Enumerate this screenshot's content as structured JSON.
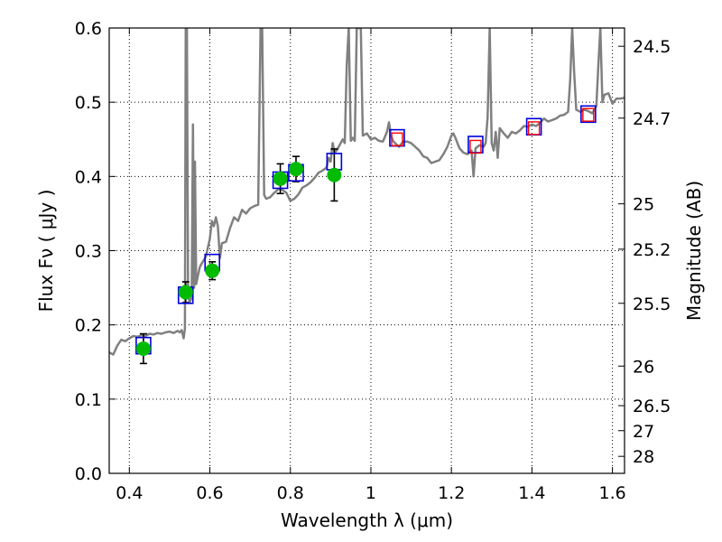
{
  "chart_data": {
    "type": "scatter",
    "xlabel": "Wavelength  λ (μm)",
    "ylabel_left": "Flux  Fν  ( μJy )",
    "ylabel_right": "Magnitude (AB)",
    "xlim": [
      0.35,
      1.63
    ],
    "ylim": [
      0.0,
      0.6
    ],
    "x_ticks": [
      0.4,
      0.6,
      0.8,
      1.0,
      1.2,
      1.4,
      1.6
    ],
    "x_tick_labels": [
      "0.4",
      "0.6",
      "0.8",
      "1",
      "1.2",
      "1.4",
      "1.6"
    ],
    "y_ticks": [
      0.0,
      0.1,
      0.2,
      0.3,
      0.4,
      0.5,
      0.6
    ],
    "y_tick_labels": [
      "0.0",
      "0.1",
      "0.2",
      "0.3",
      "0.4",
      "0.5",
      "0.6"
    ],
    "right_ticks": [
      {
        "label": "24.5",
        "flux": 0.5754
      },
      {
        "label": "24.7",
        "flux": 0.4786
      },
      {
        "label": "25",
        "flux": 0.3631
      },
      {
        "label": "25.2",
        "flux": 0.302
      },
      {
        "label": "25.5",
        "flux": 0.2291
      },
      {
        "label": "26",
        "flux": 0.1445
      },
      {
        "label": "26.5",
        "flux": 0.0912
      },
      {
        "label": "27",
        "flux": 0.0575
      },
      {
        "label": "28",
        "flux": 0.0229
      }
    ],
    "grid": true,
    "colors": {
      "model_line": "#808080",
      "observed": "#00bb00",
      "model_box": "#0000dd",
      "inner_box": "#ff0000",
      "errorbar": "#000000"
    },
    "series": [
      {
        "kind": "observed",
        "points": [
          {
            "x": 0.435,
            "y": 0.168,
            "err": 0.02
          },
          {
            "x": 0.54,
            "y": 0.244,
            "err": 0.014
          },
          {
            "x": 0.606,
            "y": 0.273,
            "err": 0.012
          },
          {
            "x": 0.775,
            "y": 0.397,
            "err": 0.02
          },
          {
            "x": 0.814,
            "y": 0.41,
            "err": 0.017
          },
          {
            "x": 0.909,
            "y": 0.402,
            "err": 0.035
          }
        ]
      },
      {
        "kind": "model_photometry",
        "points": [
          {
            "x": 0.435,
            "y": 0.172
          },
          {
            "x": 0.54,
            "y": 0.24
          },
          {
            "x": 0.606,
            "y": 0.284
          },
          {
            "x": 0.775,
            "y": 0.395
          },
          {
            "x": 0.814,
            "y": 0.405
          },
          {
            "x": 0.909,
            "y": 0.42
          },
          {
            "x": 1.065,
            "y": 0.452
          },
          {
            "x": 1.26,
            "y": 0.443
          },
          {
            "x": 1.405,
            "y": 0.467
          },
          {
            "x": 1.54,
            "y": 0.484
          }
        ]
      },
      {
        "kind": "inner_photometry",
        "points": [
          {
            "x": 1.065,
            "y": 0.45
          },
          {
            "x": 1.26,
            "y": 0.44
          },
          {
            "x": 1.405,
            "y": 0.465
          },
          {
            "x": 1.54,
            "y": 0.483
          }
        ]
      },
      {
        "kind": "model_spectrum",
        "points": [
          [
            0.35,
            0.163
          ],
          [
            0.36,
            0.16
          ],
          [
            0.37,
            0.172
          ],
          [
            0.38,
            0.18
          ],
          [
            0.39,
            0.178
          ],
          [
            0.4,
            0.182
          ],
          [
            0.41,
            0.185
          ],
          [
            0.42,
            0.184
          ],
          [
            0.43,
            0.186
          ],
          [
            0.44,
            0.185
          ],
          [
            0.45,
            0.188
          ],
          [
            0.46,
            0.187
          ],
          [
            0.47,
            0.189
          ],
          [
            0.48,
            0.188
          ],
          [
            0.49,
            0.19
          ],
          [
            0.5,
            0.191
          ],
          [
            0.51,
            0.189
          ],
          [
            0.52,
            0.192
          ],
          [
            0.525,
            0.19
          ],
          [
            0.53,
            0.193
          ],
          [
            0.535,
            0.182
          ],
          [
            0.538,
            0.195
          ],
          [
            0.54,
            0.6
          ],
          [
            0.543,
            0.6
          ],
          [
            0.546,
            0.24
          ],
          [
            0.55,
            0.23
          ],
          [
            0.555,
            0.237
          ],
          [
            0.558,
            0.47
          ],
          [
            0.561,
            0.25
          ],
          [
            0.563,
            0.42
          ],
          [
            0.566,
            0.255
          ],
          [
            0.57,
            0.265
          ],
          [
            0.575,
            0.278
          ],
          [
            0.58,
            0.283
          ],
          [
            0.59,
            0.292
          ],
          [
            0.6,
            0.316
          ],
          [
            0.605,
            0.34
          ],
          [
            0.61,
            0.333
          ],
          [
            0.615,
            0.345
          ],
          [
            0.62,
            0.333
          ],
          [
            0.625,
            0.29
          ],
          [
            0.63,
            0.31
          ],
          [
            0.64,
            0.312
          ],
          [
            0.65,
            0.33
          ],
          [
            0.66,
            0.345
          ],
          [
            0.67,
            0.34
          ],
          [
            0.68,
            0.355
          ],
          [
            0.69,
            0.35
          ],
          [
            0.7,
            0.357
          ],
          [
            0.71,
            0.36
          ],
          [
            0.72,
            0.362
          ],
          [
            0.726,
            0.6
          ],
          [
            0.73,
            0.6
          ],
          [
            0.735,
            0.375
          ],
          [
            0.74,
            0.37
          ],
          [
            0.75,
            0.372
          ],
          [
            0.76,
            0.378
          ],
          [
            0.77,
            0.383
          ],
          [
            0.78,
            0.382
          ],
          [
            0.79,
            0.378
          ],
          [
            0.8,
            0.367
          ],
          [
            0.81,
            0.37
          ],
          [
            0.82,
            0.376
          ],
          [
            0.83,
            0.385
          ],
          [
            0.84,
            0.388
          ],
          [
            0.85,
            0.392
          ],
          [
            0.86,
            0.398
          ],
          [
            0.87,
            0.405
          ],
          [
            0.88,
            0.408
          ],
          [
            0.89,
            0.412
          ],
          [
            0.895,
            0.425
          ],
          [
            0.9,
            0.42
          ],
          [
            0.905,
            0.445
          ],
          [
            0.91,
            0.432
          ],
          [
            0.915,
            0.435
          ],
          [
            0.92,
            0.44
          ],
          [
            0.925,
            0.445
          ],
          [
            0.93,
            0.45
          ],
          [
            0.935,
            0.445
          ],
          [
            0.94,
            0.55
          ],
          [
            0.945,
            0.6
          ],
          [
            0.95,
            0.448
          ],
          [
            0.955,
            0.452
          ],
          [
            0.96,
            0.448
          ],
          [
            0.965,
            0.6
          ],
          [
            0.97,
            0.6
          ],
          [
            0.975,
            0.6
          ],
          [
            0.98,
            0.455
          ],
          [
            0.99,
            0.458
          ],
          [
            1.0,
            0.45
          ],
          [
            1.01,
            0.452
          ],
          [
            1.02,
            0.448
          ],
          [
            1.03,
            0.447
          ],
          [
            1.04,
            0.46
          ],
          [
            1.045,
            0.473
          ],
          [
            1.05,
            0.455
          ],
          [
            1.055,
            0.448
          ],
          [
            1.06,
            0.445
          ],
          [
            1.07,
            0.44
          ],
          [
            1.08,
            0.447
          ],
          [
            1.09,
            0.447
          ],
          [
            1.1,
            0.445
          ],
          [
            1.11,
            0.44
          ],
          [
            1.12,
            0.435
          ],
          [
            1.13,
            0.427
          ],
          [
            1.14,
            0.425
          ],
          [
            1.15,
            0.418
          ],
          [
            1.16,
            0.42
          ],
          [
            1.17,
            0.422
          ],
          [
            1.18,
            0.43
          ],
          [
            1.19,
            0.44
          ],
          [
            1.2,
            0.455
          ],
          [
            1.205,
            0.458
          ],
          [
            1.21,
            0.452
          ],
          [
            1.22,
            0.438
          ],
          [
            1.23,
            0.432
          ],
          [
            1.24,
            0.43
          ],
          [
            1.25,
            0.435
          ],
          [
            1.255,
            0.4
          ],
          [
            1.26,
            0.438
          ],
          [
            1.27,
            0.442
          ],
          [
            1.28,
            0.44
          ],
          [
            1.285,
            0.445
          ],
          [
            1.29,
            0.48
          ],
          [
            1.295,
            0.6
          ],
          [
            1.3,
            0.445
          ],
          [
            1.305,
            0.435
          ],
          [
            1.31,
            0.46
          ],
          [
            1.315,
            0.425
          ],
          [
            1.32,
            0.465
          ],
          [
            1.33,
            0.458
          ],
          [
            1.34,
            0.452
          ],
          [
            1.35,
            0.46
          ],
          [
            1.36,
            0.458
          ],
          [
            1.37,
            0.462
          ],
          [
            1.38,
            0.468
          ],
          [
            1.39,
            0.467
          ],
          [
            1.4,
            0.47
          ],
          [
            1.41,
            0.468
          ],
          [
            1.42,
            0.472
          ],
          [
            1.43,
            0.478
          ],
          [
            1.44,
            0.474
          ],
          [
            1.45,
            0.476
          ],
          [
            1.46,
            0.478
          ],
          [
            1.47,
            0.482
          ],
          [
            1.48,
            0.483
          ],
          [
            1.49,
            0.487
          ],
          [
            1.495,
            0.53
          ],
          [
            1.5,
            0.6
          ],
          [
            1.505,
            0.54
          ],
          [
            1.51,
            0.49
          ],
          [
            1.52,
            0.487
          ],
          [
            1.53,
            0.49
          ],
          [
            1.54,
            0.488
          ],
          [
            1.55,
            0.485
          ],
          [
            1.56,
            0.495
          ],
          [
            1.565,
            0.55
          ],
          [
            1.57,
            0.6
          ],
          [
            1.575,
            0.5
          ],
          [
            1.58,
            0.51
          ],
          [
            1.59,
            0.512
          ],
          [
            1.6,
            0.498
          ],
          [
            1.61,
            0.505
          ],
          [
            1.62,
            0.505
          ],
          [
            1.63,
            0.506
          ]
        ]
      }
    ]
  }
}
